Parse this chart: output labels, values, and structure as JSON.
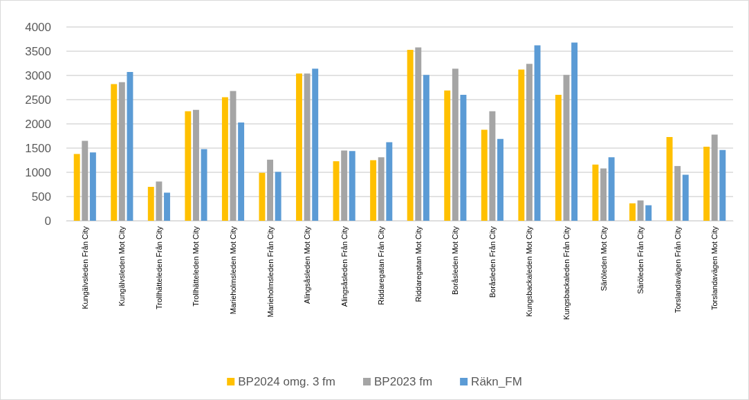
{
  "chart_data": {
    "type": "bar",
    "categories": [
      "Kungälvsleden Från City",
      "Kungälvsleden Mot City",
      "Trollhätteleden Från City",
      "Trollhätteleden Mot City",
      "Marieholmsleden Mot City",
      "Marieholmsleden Från City",
      "Alingsåsleden Mot City",
      "Alingsåsleden Från City",
      "Riddaregatan Från City",
      "Riddaregatan Mot City",
      "Boråsleden Mot City",
      "Boråsleden Från City",
      "Kungsbackaleden Mot City",
      "Kungsbackaleden Från City",
      "Säröleden Mot City",
      "Säröleden Från City",
      "Torslandavägen Från City",
      "Torslandavägen Mot City"
    ],
    "series": [
      {
        "name": "BP2024 omg. 3 fm",
        "color": "#ffc000",
        "values": [
          1380,
          2820,
          700,
          2260,
          2550,
          990,
          3040,
          1230,
          1250,
          3530,
          2690,
          1880,
          3120,
          2600,
          1160,
          360,
          1730,
          1530
        ]
      },
      {
        "name": "BP2023 fm",
        "color": "#a5a5a5",
        "values": [
          1650,
          2860,
          810,
          2290,
          2680,
          1260,
          3040,
          1450,
          1310,
          3580,
          3140,
          2260,
          3240,
          3010,
          1080,
          420,
          1130,
          1780
        ]
      },
      {
        "name": "Räkn_FM",
        "color": "#5b9bd5",
        "values": [
          1410,
          3070,
          580,
          1480,
          2030,
          1010,
          3140,
          1440,
          1620,
          3010,
          2600,
          1690,
          3620,
          3680,
          1310,
          320,
          950,
          1460
        ]
      }
    ],
    "ylim": [
      0,
      4000
    ],
    "yticks": [
      0,
      500,
      1000,
      1500,
      2000,
      2500,
      3000,
      3500,
      4000
    ],
    "grid": "y",
    "legend": "bottom"
  }
}
